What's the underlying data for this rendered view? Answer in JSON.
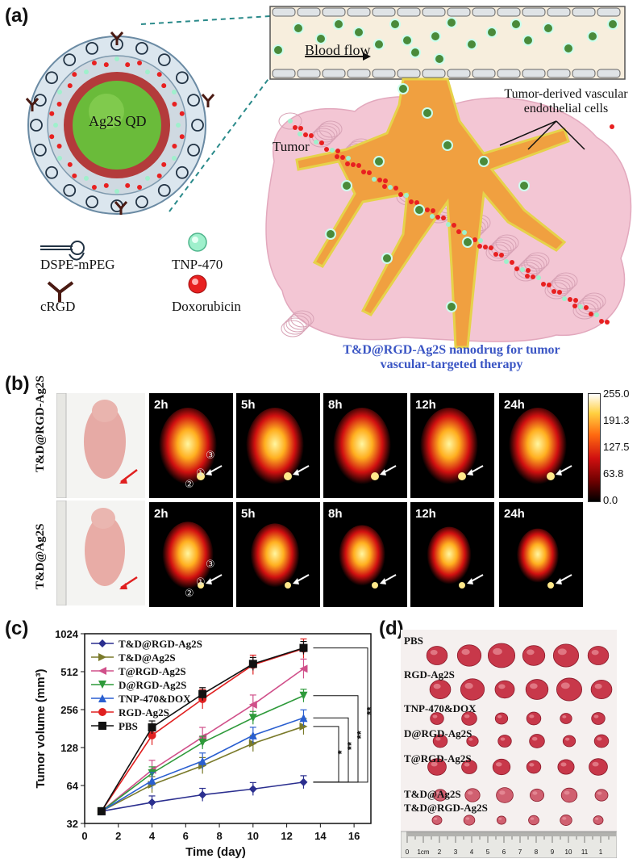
{
  "panels": {
    "a": {
      "label": "(a)",
      "core_label": "Ag2S QD",
      "blood_flow_label": "Blood flow",
      "tumor_label": "Tumor",
      "vascular_label_line1": "Tumor-derived vascular",
      "vascular_label_line2": "endothelial cells",
      "legend": [
        {
          "icon": "dspe-mpeg-icon",
          "text": "DSPE-mPEG"
        },
        {
          "icon": "tnp-470-icon",
          "text": "TNP-470"
        },
        {
          "icon": "crgd-icon",
          "text": "cRGD"
        },
        {
          "icon": "doxorubicin-icon",
          "text": "Doxorubicin"
        }
      ],
      "caption_line1": "T&D@RGD-Ag2S nanodrug for tumor",
      "caption_line2": "vascular-targeted therapy",
      "colors": {
        "caption": "#3a55c4",
        "core": "#5fb83a",
        "vessel": "#f0a040",
        "tissue": "#f3c6d4"
      }
    },
    "b": {
      "label": "(b)",
      "rows": [
        "T&D@RGD-Ag2S",
        "T&D@Ag2S"
      ],
      "times": [
        "2h",
        "5h",
        "8h",
        "12h",
        "24h"
      ],
      "colorbar_ticks": [
        "255.0",
        "191.3",
        "127.5",
        "63.8",
        "0.0"
      ],
      "markers": [
        "①",
        "②",
        "③"
      ]
    },
    "c": {
      "label": "(c)"
    },
    "d": {
      "label": "(d)",
      "groups": [
        "PBS",
        "RGD-Ag2S",
        "TNP-470&DOX",
        "D@RGD-Ag2S",
        "T@RGD-Ag2S",
        "T&D@Ag2S",
        "T&D@RGD-Ag2S"
      ],
      "ruler_numbers": [
        "0",
        "1cm",
        "2",
        "3",
        "4",
        "5",
        "6",
        "7",
        "8",
        "9",
        "10",
        "11",
        "1"
      ]
    }
  },
  "chart_data": {
    "type": "line",
    "xlabel": "Time (day)",
    "ylabel": "Tumor volume (mm³)",
    "xlim": [
      0,
      17
    ],
    "xticks": [
      0,
      2,
      4,
      6,
      8,
      10,
      12,
      14,
      16
    ],
    "ylim": [
      32,
      1024
    ],
    "yscale": "log2",
    "yticks": [
      32,
      64,
      128,
      256,
      512,
      1024
    ],
    "legend_position": "top-left",
    "x": [
      1,
      4,
      7,
      10,
      13
    ],
    "series": [
      {
        "name": "T&D@RGD-Ag2S",
        "color": "#2b2f8f",
        "marker": "diamond",
        "values": [
          40,
          47,
          54,
          60,
          68
        ]
      },
      {
        "name": "T&D@Ag2S",
        "color": "#7a7a2a",
        "marker": "triangle-right",
        "values": [
          40,
          65,
          92,
          138,
          188
        ]
      },
      {
        "name": "T@RGD-Ag2S",
        "color": "#d0508a",
        "marker": "triangle-left",
        "values": [
          40,
          85,
          155,
          280,
          540
        ]
      },
      {
        "name": "D@RGD-Ag2S",
        "color": "#2e9a3a",
        "marker": "triangle-down",
        "values": [
          40,
          80,
          140,
          220,
          330
        ]
      },
      {
        "name": "TNP-470&DOX",
        "color": "#2a5fd0",
        "marker": "triangle-up",
        "values": [
          40,
          70,
          100,
          160,
          220
        ]
      },
      {
        "name": "RGD-Ag2S",
        "color": "#e02020",
        "marker": "circle",
        "values": [
          40,
          160,
          310,
          580,
          780
        ]
      },
      {
        "name": "PBS",
        "color": "#111111",
        "marker": "square",
        "values": [
          40,
          185,
          340,
          590,
          790
        ]
      }
    ],
    "significance": [
      "*",
      "**",
      "**",
      "**"
    ]
  }
}
